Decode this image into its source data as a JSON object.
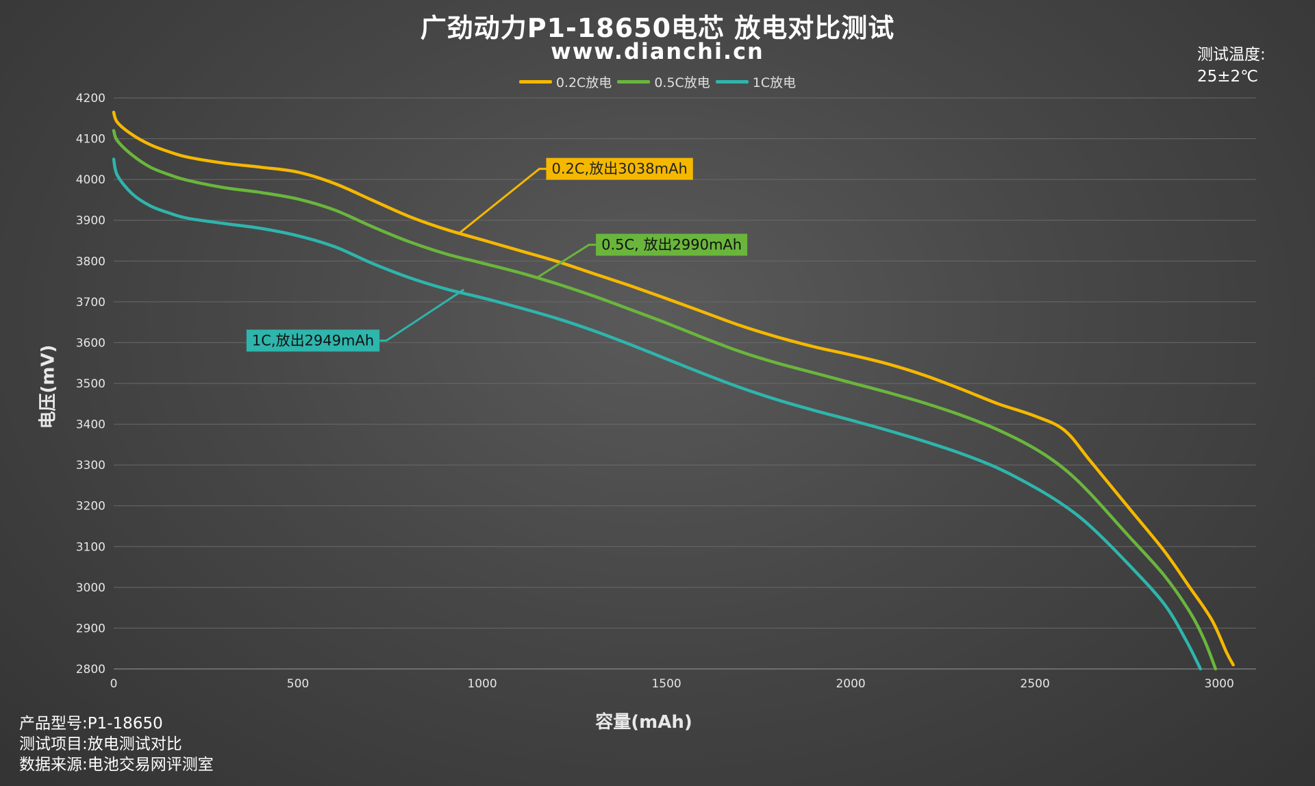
{
  "header": {
    "title": "广劲动力P1-18650电芯 放电对比测试",
    "subtitle": "www.dianchi.cn",
    "temperature_label": "测试温度:",
    "temperature_value": "25±2℃"
  },
  "footer": {
    "lines": [
      "产品型号:P1-18650",
      "测试项目:放电测试对比",
      "数据来源:电池交易网评测室"
    ]
  },
  "chart_data": {
    "type": "line",
    "xlabel": "容量(mAh)",
    "ylabel": "电压(mV)",
    "xlim": [
      0,
      3100
    ],
    "ylim": [
      2800,
      4200
    ],
    "x_ticks": [
      0,
      500,
      1000,
      1500,
      2000,
      2500,
      3000
    ],
    "y_ticks": [
      2800,
      2900,
      3000,
      3100,
      3200,
      3300,
      3400,
      3500,
      3600,
      3700,
      3800,
      3900,
      4000,
      4100,
      4200
    ],
    "grid": "horizontal",
    "legend_position": "top-center",
    "series": [
      {
        "name": "0.2C放电",
        "color": "#f5b800",
        "points": [
          [
            0,
            4165
          ],
          [
            10,
            4140
          ],
          [
            50,
            4110
          ],
          [
            100,
            4085
          ],
          [
            150,
            4068
          ],
          [
            200,
            4055
          ],
          [
            300,
            4040
          ],
          [
            400,
            4030
          ],
          [
            500,
            4018
          ],
          [
            600,
            3990
          ],
          [
            700,
            3950
          ],
          [
            800,
            3910
          ],
          [
            900,
            3878
          ],
          [
            1000,
            3852
          ],
          [
            1100,
            3826
          ],
          [
            1200,
            3800
          ],
          [
            1300,
            3770
          ],
          [
            1400,
            3740
          ],
          [
            1500,
            3708
          ],
          [
            1600,
            3675
          ],
          [
            1700,
            3642
          ],
          [
            1800,
            3614
          ],
          [
            1900,
            3590
          ],
          [
            2000,
            3570
          ],
          [
            2100,
            3548
          ],
          [
            2200,
            3520
          ],
          [
            2300,
            3486
          ],
          [
            2400,
            3450
          ],
          [
            2500,
            3420
          ],
          [
            2580,
            3385
          ],
          [
            2650,
            3310
          ],
          [
            2750,
            3200
          ],
          [
            2850,
            3090
          ],
          [
            2920,
            3000
          ],
          [
            2980,
            2920
          ],
          [
            3020,
            2840
          ],
          [
            3038,
            2810
          ]
        ]
      },
      {
        "name": "0.5C放电",
        "color": "#6ab63c",
        "points": [
          [
            0,
            4120
          ],
          [
            10,
            4095
          ],
          [
            50,
            4060
          ],
          [
            100,
            4030
          ],
          [
            150,
            4012
          ],
          [
            200,
            3998
          ],
          [
            300,
            3980
          ],
          [
            400,
            3968
          ],
          [
            500,
            3952
          ],
          [
            600,
            3925
          ],
          [
            700,
            3885
          ],
          [
            800,
            3848
          ],
          [
            900,
            3818
          ],
          [
            1000,
            3795
          ],
          [
            1100,
            3772
          ],
          [
            1200,
            3745
          ],
          [
            1300,
            3715
          ],
          [
            1400,
            3682
          ],
          [
            1500,
            3648
          ],
          [
            1600,
            3612
          ],
          [
            1700,
            3578
          ],
          [
            1800,
            3550
          ],
          [
            1900,
            3526
          ],
          [
            2000,
            3502
          ],
          [
            2100,
            3478
          ],
          [
            2200,
            3452
          ],
          [
            2300,
            3422
          ],
          [
            2400,
            3386
          ],
          [
            2500,
            3340
          ],
          [
            2580,
            3290
          ],
          [
            2650,
            3230
          ],
          [
            2750,
            3130
          ],
          [
            2850,
            3030
          ],
          [
            2920,
            2940
          ],
          [
            2960,
            2870
          ],
          [
            2990,
            2800
          ]
        ]
      },
      {
        "name": "1C放电",
        "color": "#2eb5ac",
        "points": [
          [
            0,
            4050
          ],
          [
            10,
            4010
          ],
          [
            50,
            3965
          ],
          [
            100,
            3935
          ],
          [
            150,
            3918
          ],
          [
            200,
            3905
          ],
          [
            300,
            3892
          ],
          [
            400,
            3880
          ],
          [
            500,
            3862
          ],
          [
            600,
            3835
          ],
          [
            700,
            3795
          ],
          [
            800,
            3760
          ],
          [
            900,
            3732
          ],
          [
            1000,
            3710
          ],
          [
            1100,
            3686
          ],
          [
            1200,
            3660
          ],
          [
            1300,
            3630
          ],
          [
            1400,
            3596
          ],
          [
            1500,
            3560
          ],
          [
            1600,
            3524
          ],
          [
            1700,
            3490
          ],
          [
            1800,
            3460
          ],
          [
            1900,
            3434
          ],
          [
            2000,
            3410
          ],
          [
            2100,
            3385
          ],
          [
            2200,
            3358
          ],
          [
            2300,
            3328
          ],
          [
            2400,
            3292
          ],
          [
            2500,
            3245
          ],
          [
            2580,
            3200
          ],
          [
            2650,
            3150
          ],
          [
            2750,
            3060
          ],
          [
            2850,
            2960
          ],
          [
            2910,
            2870
          ],
          [
            2949,
            2800
          ]
        ]
      }
    ],
    "annotations": [
      {
        "text": "0.2C,放出3038mAh",
        "series": "0.2C放电",
        "bg": "#f5b800",
        "text_color": "#222222",
        "point": [
          940,
          3870
        ],
        "label_at": [
          1155,
          4026
        ]
      },
      {
        "text": "0.5C, 放出2990mAh",
        "series": "0.5C放电",
        "bg": "#6ab63c",
        "text_color": "#111111",
        "point": [
          1150,
          3760
        ],
        "label_at": [
          1290,
          3840
        ]
      },
      {
        "text": "1C,放出2949mAh",
        "series": "1C放电",
        "bg": "#2eb5ac",
        "text_color": "#111111",
        "point": [
          950,
          3730
        ],
        "label_at": [
          740,
          3605
        ]
      }
    ]
  }
}
